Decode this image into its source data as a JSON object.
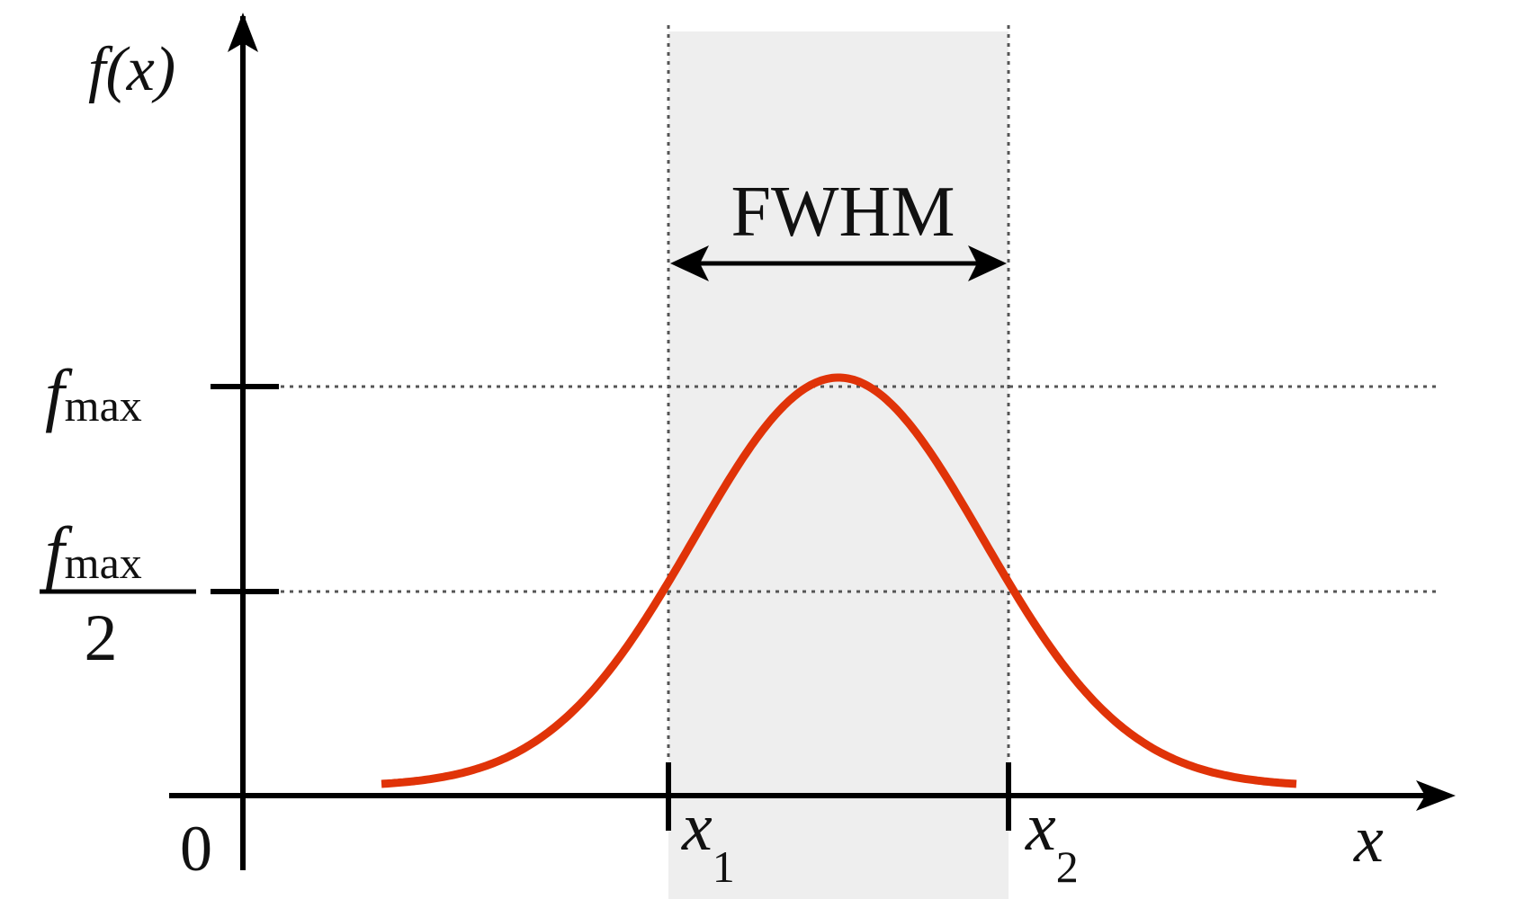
{
  "diagram": {
    "y_axis_label": "f(x)",
    "x_axis_label": "x",
    "origin_label": "0",
    "fmax_label": {
      "base": "f",
      "subscript": "max"
    },
    "half_max_label": {
      "numerator_base": "f",
      "numerator_subscript": "max",
      "denominator": "2"
    },
    "x1_label": {
      "base": "x",
      "subscript": "1"
    },
    "x2_label": {
      "base": "x",
      "subscript": "2"
    },
    "width_label": "FWHM",
    "colors": {
      "curve": "#e03308",
      "band": "#eeeeee",
      "axes": "#000000",
      "guides": "#555555"
    }
  }
}
